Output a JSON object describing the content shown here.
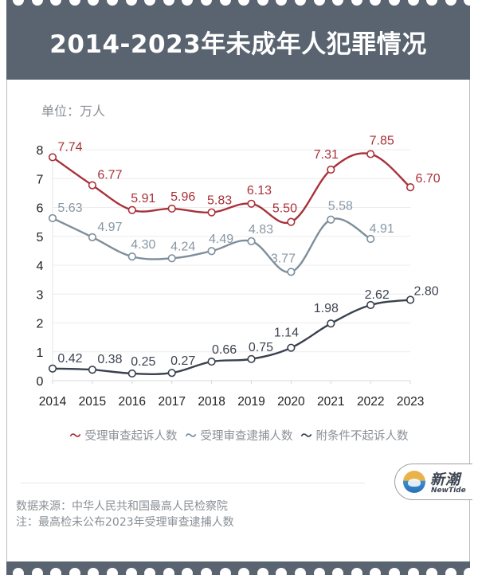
{
  "header": {
    "title": "2014-2023年未成年人犯罪情况"
  },
  "unit_label": "单位：万人",
  "chart_data": {
    "type": "line",
    "title": "2014-2023年未成年人犯罪情况",
    "xlabel": "",
    "ylabel": "单位：万人",
    "categories": [
      "2014",
      "2015",
      "2016",
      "2017",
      "2018",
      "2019",
      "2020",
      "2021",
      "2022",
      "2023"
    ],
    "ylim": [
      0,
      8
    ],
    "yticks": [
      0,
      1,
      2,
      3,
      4,
      5,
      6,
      7,
      8
    ],
    "grid": true,
    "legend_position": "bottom",
    "series": [
      {
        "name": "受理审查起诉人数",
        "color": "#a8313a",
        "label_color": "#a8313a",
        "values": [
          7.74,
          6.77,
          5.91,
          5.96,
          5.83,
          6.13,
          5.5,
          7.31,
          7.85,
          6.7
        ],
        "labels": [
          "7.74",
          "6.77",
          "5.91",
          "5.96",
          "5.83",
          "6.13",
          "5.50",
          "7.31",
          "7.85",
          "6.70"
        ]
      },
      {
        "name": "受理审查逮捕人数",
        "color": "#7d8e9b",
        "label_color": "#8797a4",
        "values": [
          5.63,
          4.97,
          4.3,
          4.24,
          4.49,
          4.83,
          3.77,
          5.58,
          4.91,
          null
        ],
        "labels": [
          "5.63",
          "4.97",
          "4.30",
          "4.24",
          "4.49",
          "4.83",
          "3.77",
          "5.58",
          "4.91",
          ""
        ]
      },
      {
        "name": "附条件不起诉人数",
        "color": "#39414e",
        "label_color": "#3d4450",
        "values": [
          0.42,
          0.38,
          0.25,
          0.27,
          0.66,
          0.75,
          1.14,
          1.98,
          2.62,
          2.8
        ],
        "labels": [
          "0.42",
          "0.38",
          "0.25",
          "0.27",
          "0.66",
          "0.75",
          "1.14",
          "1.98",
          "2.62",
          "2.80"
        ]
      }
    ]
  },
  "legend": [
    {
      "label": "受理审查起诉人数",
      "color": "#a8313a"
    },
    {
      "label": "受理审查逮捕人数",
      "color": "#7d8e9b"
    },
    {
      "label": "附条件不起诉人数",
      "color": "#39414e"
    }
  ],
  "footer": {
    "source": "数据来源：中华人民共和国最高人民检察院",
    "note": "注：最高检未公布2023年受理审查逮捕人数"
  },
  "logo": {
    "cn": "新潮",
    "en": "NewTide"
  },
  "colors": {
    "header_bg": "#5a6470",
    "grid": "#ececee",
    "axis_text": "#222222"
  }
}
